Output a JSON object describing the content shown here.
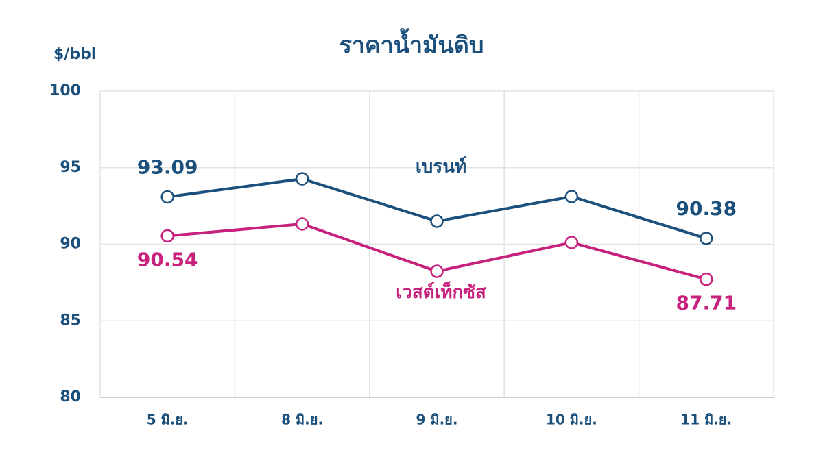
{
  "chart_data": {
    "type": "line",
    "title": "ราคาน้ำมันดิบ",
    "y_label": "$/bbl",
    "categories": [
      "5 มิ.ย.",
      "8 มิ.ย.",
      "9 มิ.ย.",
      "10 มิ.ย.",
      "11 มิ.ย."
    ],
    "series": [
      {
        "name": "เบรนท์",
        "color": "#1b4f7c",
        "values": [
          93.09,
          94.27,
          91.5,
          93.11,
          90.38
        ]
      },
      {
        "name": "เวสต์เท็กซัส",
        "color": "#c8207d",
        "values": [
          90.54,
          91.32,
          88.23,
          90.11,
          87.71
        ]
      }
    ],
    "ylim": [
      80,
      100
    ],
    "yticks": [
      80,
      85,
      90,
      95,
      100
    ],
    "grid": true
  }
}
